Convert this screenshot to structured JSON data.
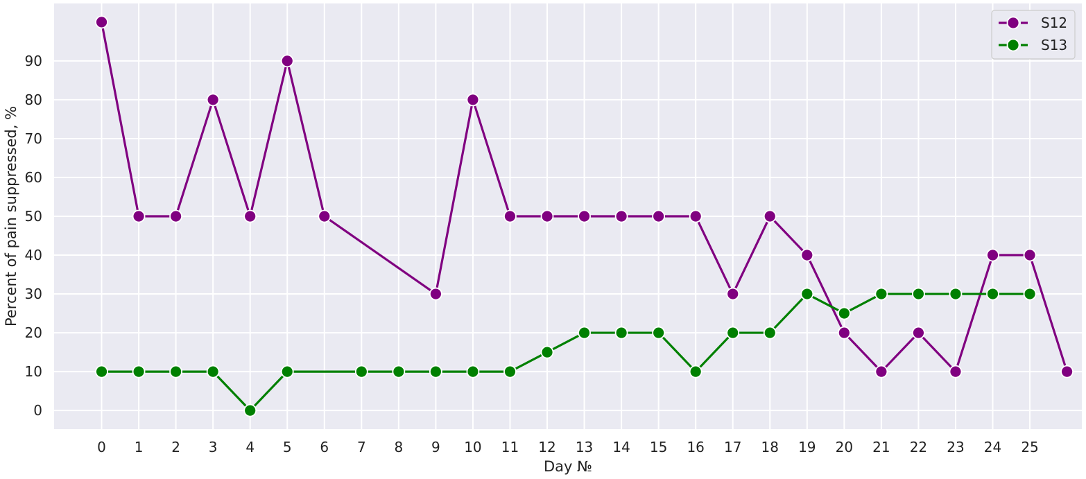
{
  "chart_data": {
    "type": "line",
    "title": "",
    "xlabel": "Day №",
    "ylabel": "Percent of pain suppressed, %",
    "x_ticks": [
      "0",
      "1",
      "2",
      "3",
      "4",
      "5",
      "6",
      "7",
      "8",
      "9",
      "10",
      "11",
      "12",
      "13",
      "14",
      "15",
      "16",
      "17",
      "18",
      "19",
      "20",
      "21",
      "22",
      "23",
      "24",
      "25"
    ],
    "y_ticks": [
      0,
      10,
      20,
      30,
      40,
      50,
      60,
      70,
      80,
      90
    ],
    "xlim": [
      -1.28,
      26.4
    ],
    "ylim": [
      -4.8,
      104.8
    ],
    "grid": true,
    "legend_position": "top-right",
    "series": [
      {
        "name": "S12",
        "color": "#800080",
        "points": [
          [
            0,
            100
          ],
          [
            1,
            50
          ],
          [
            2,
            50
          ],
          [
            3,
            80
          ],
          [
            4,
            50
          ],
          [
            5,
            90
          ],
          [
            6,
            50
          ],
          [
            9,
            30
          ],
          [
            10,
            80
          ],
          [
            11,
            50
          ],
          [
            12,
            50
          ],
          [
            13,
            50
          ],
          [
            14,
            50
          ],
          [
            15,
            50
          ],
          [
            16,
            50
          ],
          [
            17,
            30
          ],
          [
            18,
            50
          ],
          [
            19,
            40
          ],
          [
            20,
            20
          ],
          [
            21,
            10
          ],
          [
            22,
            20
          ],
          [
            23,
            10
          ],
          [
            24,
            40
          ],
          [
            25,
            40
          ],
          [
            26,
            10
          ]
        ]
      },
      {
        "name": "S13",
        "color": "#008000",
        "points": [
          [
            0,
            10
          ],
          [
            1,
            10
          ],
          [
            2,
            10
          ],
          [
            3,
            10
          ],
          [
            4,
            0
          ],
          [
            5,
            10
          ],
          [
            7,
            10
          ],
          [
            8,
            10
          ],
          [
            9,
            10
          ],
          [
            10,
            10
          ],
          [
            11,
            10
          ],
          [
            12,
            15
          ],
          [
            13,
            20
          ],
          [
            14,
            20
          ],
          [
            15,
            20
          ],
          [
            16,
            10
          ],
          [
            17,
            20
          ],
          [
            18,
            20
          ],
          [
            19,
            30
          ],
          [
            20,
            25
          ],
          [
            21,
            30
          ],
          [
            22,
            30
          ],
          [
            23,
            30
          ],
          [
            24,
            30
          ],
          [
            25,
            30
          ]
        ]
      }
    ]
  },
  "colors": {
    "plot_background": "#EAEAF2",
    "grid": "#FFFFFF"
  }
}
